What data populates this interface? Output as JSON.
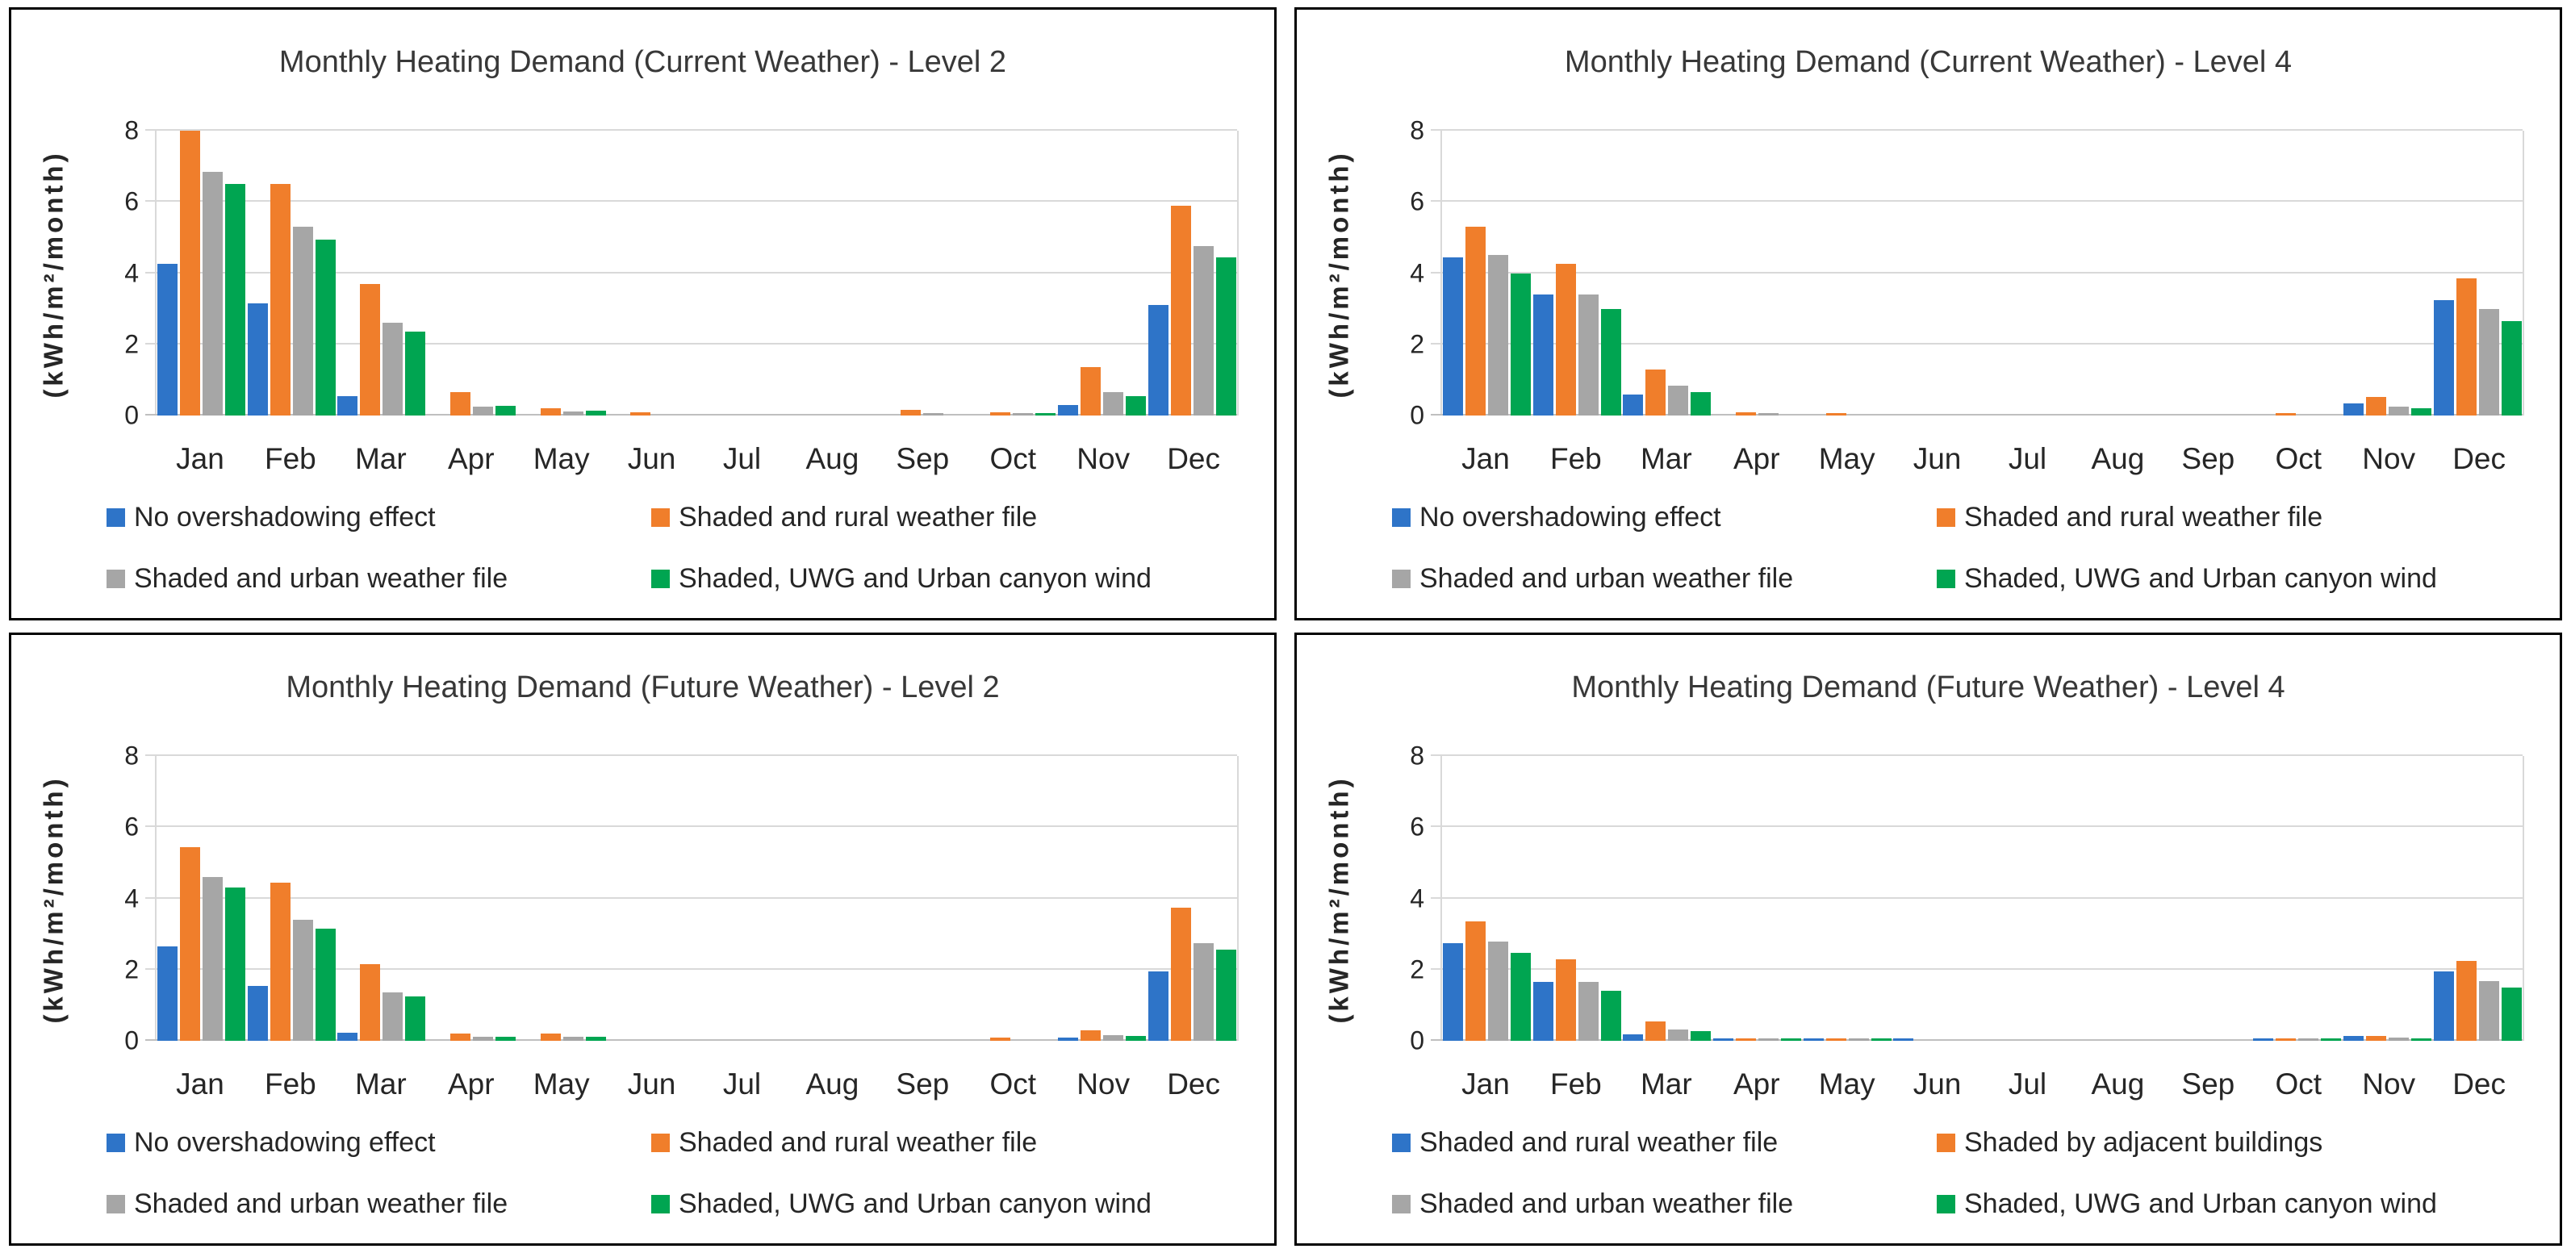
{
  "figure": {
    "months": [
      "Jan",
      "Feb",
      "Mar",
      "Apr",
      "May",
      "Jun",
      "Jul",
      "Aug",
      "Sep",
      "Oct",
      "Nov",
      "Dec"
    ],
    "y_ticks": [
      0,
      2,
      4,
      6,
      8
    ],
    "y_max": 8,
    "colors": {
      "blue": "#2e74c8",
      "orange": "#f07e2b",
      "gray": "#a6a6a6",
      "green": "#00a551",
      "gridline": "#d9d9d9",
      "axis_line": "#bfbfbf",
      "title_text": "#383838",
      "body_text": "#262626",
      "panel_border": "#000000"
    }
  },
  "chart_data": [
    {
      "type": "bar",
      "title": "Monthly Heating Demand (Current Weather) - Level 2",
      "ylabel": "(kWh/m²/month)",
      "xlabel": "",
      "ylim": [
        0,
        8
      ],
      "grid": true,
      "legend_position": "bottom",
      "categories": [
        "Jan",
        "Feb",
        "Mar",
        "Apr",
        "May",
        "Jun",
        "Jul",
        "Aug",
        "Sep",
        "Oct",
        "Nov",
        "Dec"
      ],
      "series": [
        {
          "name": "No overshadowing effect",
          "color": "#2e74c8",
          "values": [
            4.25,
            3.15,
            0.55,
            0,
            0,
            0,
            0,
            0,
            0,
            0,
            0.3,
            3.1
          ]
        },
        {
          "name": "Shaded and rural weather file",
          "color": "#f07e2b",
          "values": [
            8.0,
            6.5,
            3.7,
            0.65,
            0.2,
            0.08,
            0,
            0,
            0.15,
            0.1,
            1.35,
            5.9
          ]
        },
        {
          "name": "Shaded and urban weather file",
          "color": "#a6a6a6",
          "values": [
            6.85,
            5.3,
            2.6,
            0.25,
            0.12,
            0,
            0,
            0,
            0.07,
            0.06,
            0.65,
            4.75
          ]
        },
        {
          "name": "Shaded, UWG and Urban canyon wind",
          "color": "#00a551",
          "values": [
            6.5,
            4.95,
            2.35,
            0.27,
            0.13,
            0,
            0,
            0,
            0,
            0.06,
            0.55,
            4.45
          ]
        }
      ]
    },
    {
      "type": "bar",
      "title": "Monthly Heating Demand (Current Weather) - Level 4",
      "ylabel": "(kWh/m²/month)",
      "xlabel": "",
      "ylim": [
        0,
        8
      ],
      "grid": true,
      "legend_position": "bottom",
      "categories": [
        "Jan",
        "Feb",
        "Mar",
        "Apr",
        "May",
        "Jun",
        "Jul",
        "Aug",
        "Sep",
        "Oct",
        "Nov",
        "Dec"
      ],
      "series": [
        {
          "name": "No overshadowing effect",
          "color": "#2e74c8",
          "values": [
            4.45,
            3.4,
            0.6,
            0,
            0,
            0,
            0,
            0,
            0,
            0,
            0.33,
            3.25
          ]
        },
        {
          "name": "Shaded and rural weather file",
          "color": "#f07e2b",
          "values": [
            5.3,
            4.25,
            1.3,
            0.1,
            0.06,
            0,
            0,
            0,
            0,
            0.06,
            0.52,
            3.85
          ]
        },
        {
          "name": "Shaded and urban weather file",
          "color": "#a6a6a6",
          "values": [
            4.5,
            3.4,
            0.85,
            0.06,
            0,
            0,
            0,
            0,
            0,
            0,
            0.25,
            3.0
          ]
        },
        {
          "name": "Shaded, UWG and Urban canyon wind",
          "color": "#00a551",
          "values": [
            4.0,
            3.0,
            0.65,
            0,
            0,
            0,
            0,
            0,
            0,
            0,
            0.2,
            2.65
          ]
        }
      ]
    },
    {
      "type": "bar",
      "title": "Monthly Heating Demand (Future Weather) - Level 2",
      "ylabel": "(kWh/m²/month)",
      "xlabel": "",
      "ylim": [
        0,
        8
      ],
      "grid": true,
      "legend_position": "bottom",
      "categories": [
        "Jan",
        "Feb",
        "Mar",
        "Apr",
        "May",
        "Jun",
        "Jul",
        "Aug",
        "Sep",
        "Oct",
        "Nov",
        "Dec"
      ],
      "series": [
        {
          "name": "No overshadowing effect",
          "color": "#2e74c8",
          "values": [
            2.65,
            1.55,
            0.22,
            0,
            0,
            0,
            0,
            0,
            0,
            0,
            0.1,
            1.95
          ]
        },
        {
          "name": "Shaded and rural weather file",
          "color": "#f07e2b",
          "values": [
            5.45,
            4.45,
            2.15,
            0.2,
            0.2,
            0,
            0,
            0,
            0,
            0.08,
            0.3,
            3.75
          ]
        },
        {
          "name": "Shaded and urban weather file",
          "color": "#a6a6a6",
          "values": [
            4.6,
            3.4,
            1.35,
            0.12,
            0.12,
            0,
            0,
            0,
            0,
            0,
            0.17,
            2.75
          ]
        },
        {
          "name": "Shaded, UWG and Urban canyon wind",
          "color": "#00a551",
          "values": [
            4.3,
            3.15,
            1.25,
            0.12,
            0.11,
            0,
            0,
            0,
            0,
            0,
            0.13,
            2.55
          ]
        }
      ]
    },
    {
      "type": "bar",
      "title": "Monthly Heating Demand (Future Weather) - Level 4",
      "ylabel": "(kWh/m²/month)",
      "xlabel": "",
      "ylim": [
        0,
        8
      ],
      "grid": true,
      "legend_position": "bottom",
      "categories": [
        "Jan",
        "Feb",
        "Mar",
        "Apr",
        "May",
        "Jun",
        "Jul",
        "Aug",
        "Sep",
        "Oct",
        "Nov",
        "Dec"
      ],
      "series": [
        {
          "name": "Shaded and rural weather file",
          "color": "#2e74c8",
          "values": [
            2.75,
            1.65,
            0.18,
            0.05,
            0.04,
            0.05,
            0,
            0,
            0,
            0.05,
            0.14,
            1.95
          ]
        },
        {
          "name": "Shaded by adjacent buildings",
          "color": "#f07e2b",
          "values": [
            3.35,
            2.3,
            0.55,
            0.05,
            0.05,
            0,
            0,
            0,
            0,
            0.05,
            0.14,
            2.25
          ]
        },
        {
          "name": "Shaded and urban weather file",
          "color": "#a6a6a6",
          "values": [
            2.78,
            1.65,
            0.32,
            0.05,
            0.04,
            0,
            0,
            0,
            0,
            0.04,
            0.1,
            1.67
          ]
        },
        {
          "name": "Shaded, UWG and Urban canyon wind",
          "color": "#00a551",
          "values": [
            2.48,
            1.4,
            0.28,
            0.04,
            0.05,
            0,
            0,
            0,
            0,
            0.05,
            0.05,
            1.5
          ]
        }
      ]
    }
  ]
}
